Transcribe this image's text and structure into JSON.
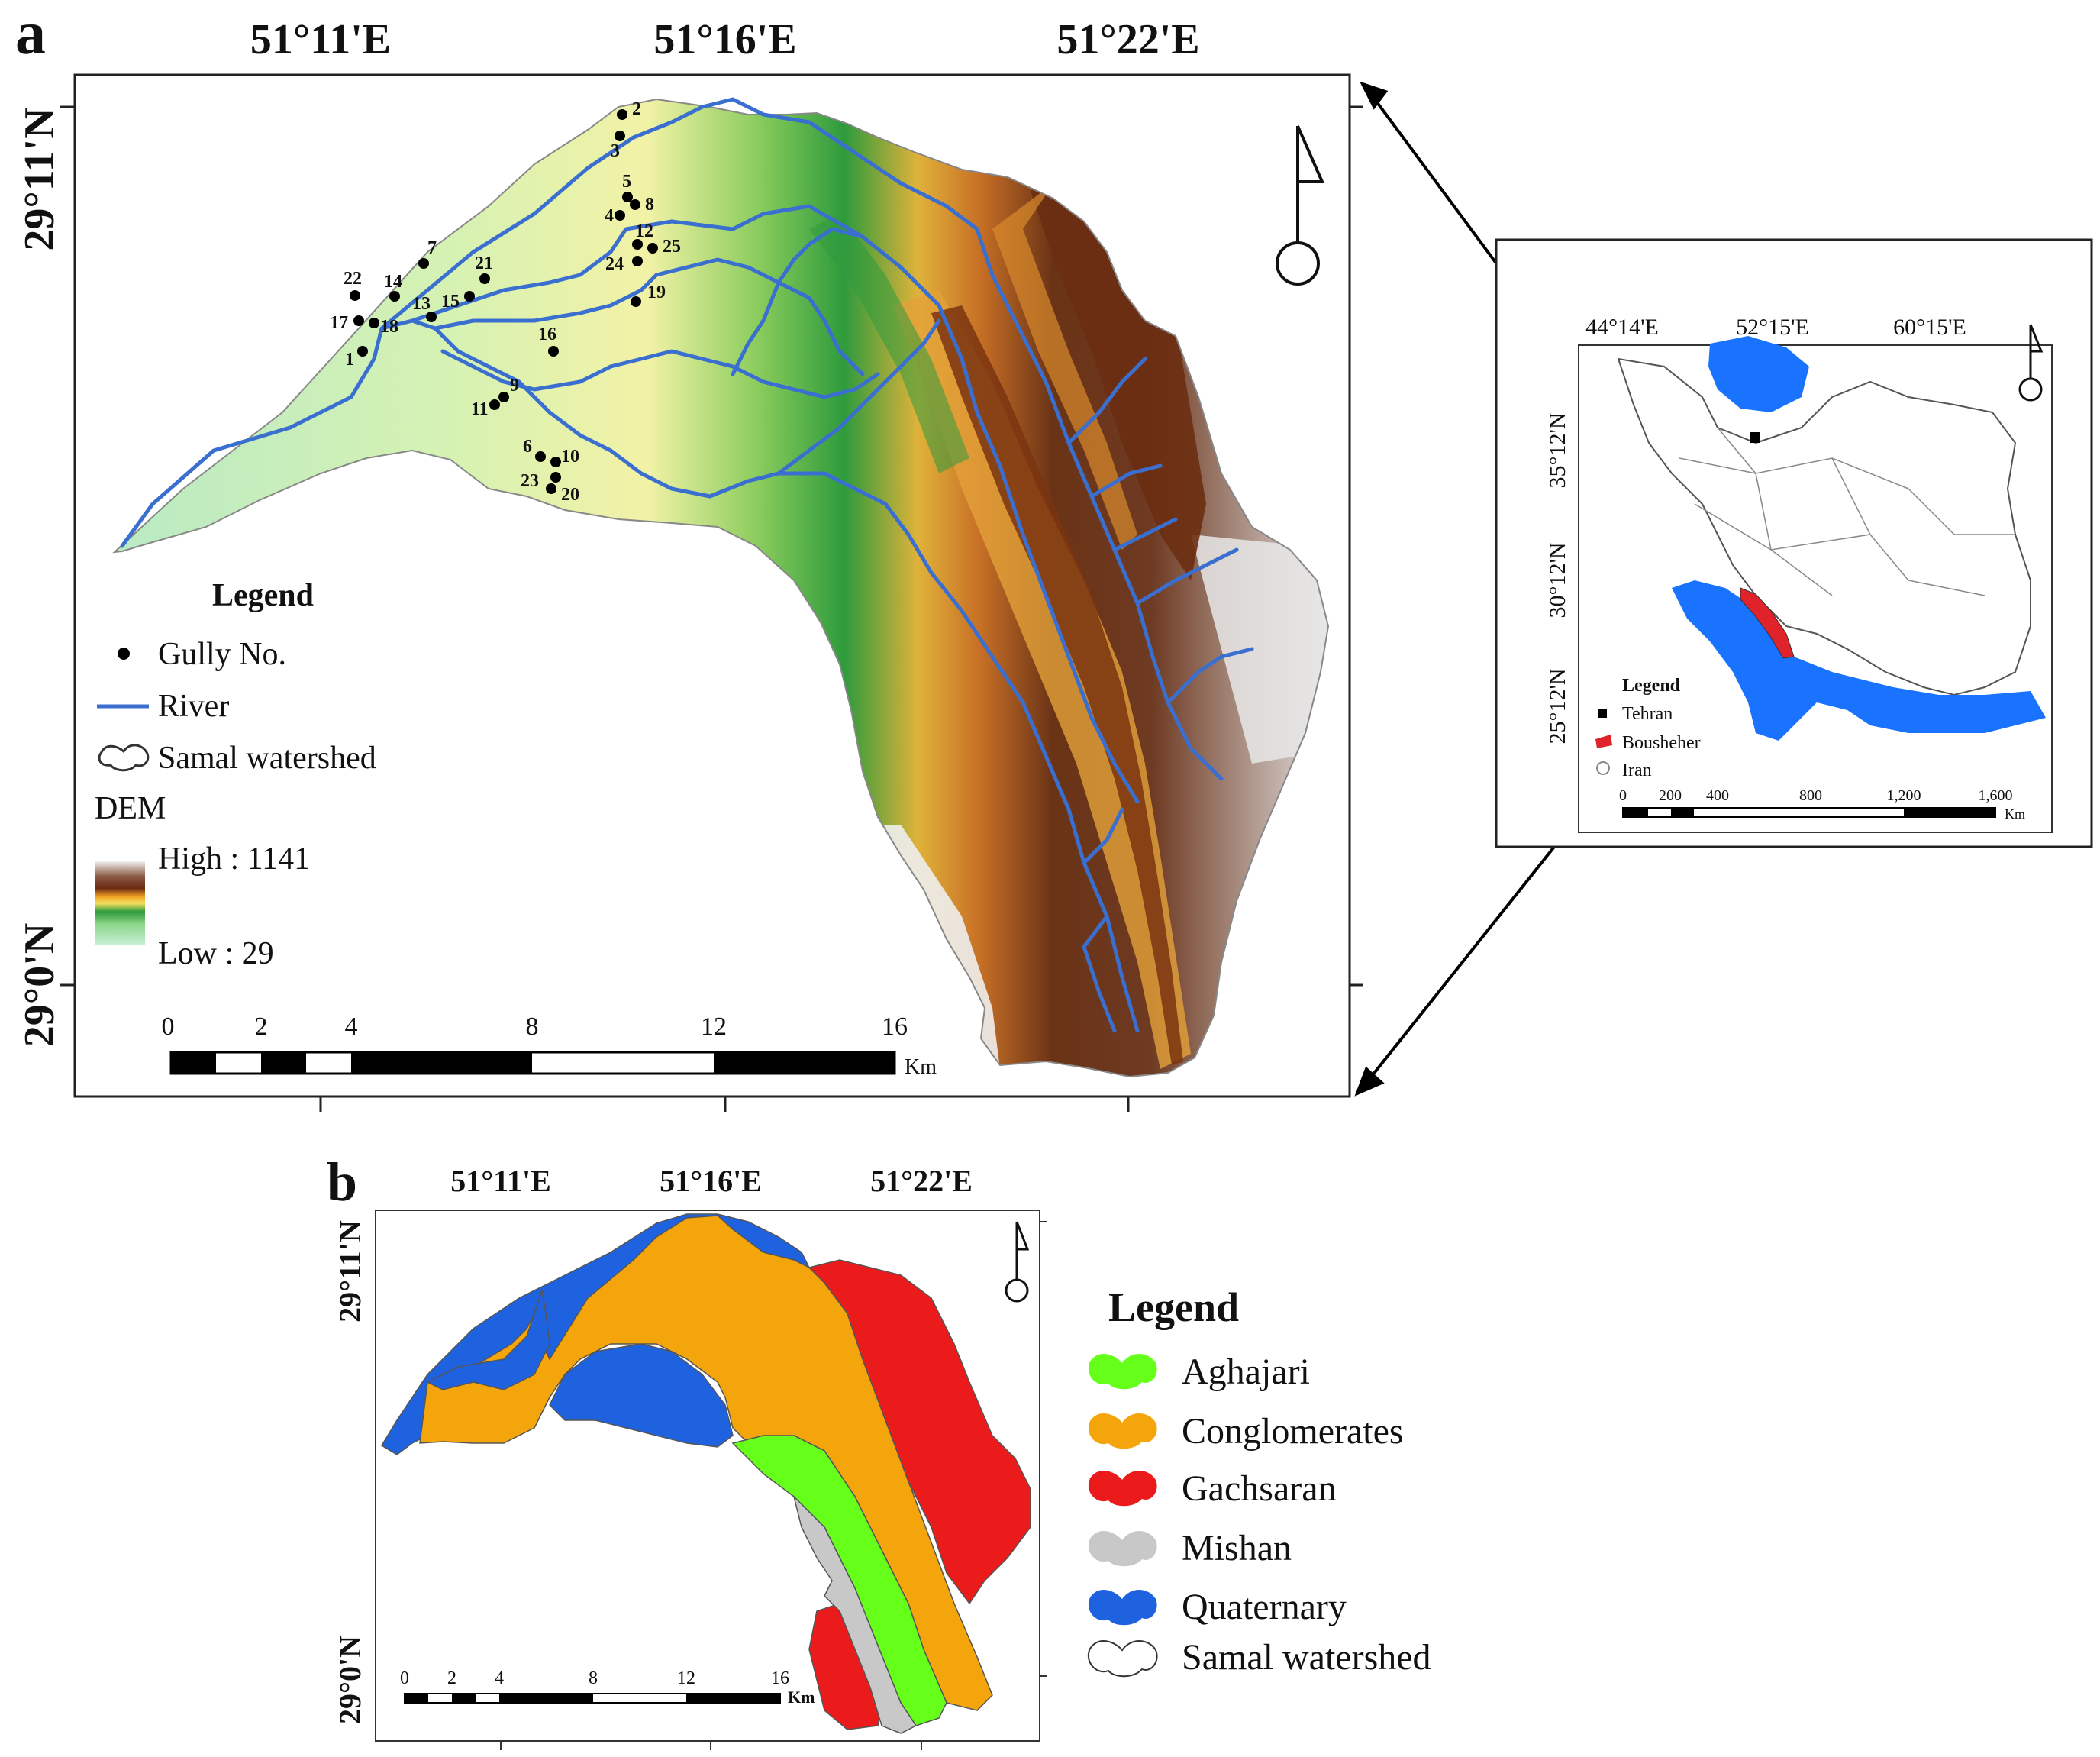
{
  "panel_a": {
    "label": "a",
    "lon_labels": [
      "51°11'E",
      "51°16'E",
      "51°22'E"
    ],
    "lat_labels": [
      "29°11'N",
      "29°0'N"
    ],
    "legend": {
      "title": "Legend",
      "gully": "Gully No.",
      "river": "River",
      "watershed": "Samal watershed",
      "dem_title": "DEM",
      "dem_high": "High : 1141",
      "dem_low": "Low : 29"
    },
    "scale": {
      "ticks": [
        "0",
        "2",
        "4",
        "8",
        "12",
        "16"
      ],
      "unit": "Km"
    },
    "gullies": [
      "1",
      "2",
      "3",
      "4",
      "5",
      "6",
      "7",
      "8",
      "9",
      "10",
      "11",
      "12",
      "13",
      "14",
      "15",
      "16",
      "17",
      "18",
      "19",
      "20",
      "21",
      "22",
      "23",
      "24",
      "25"
    ]
  },
  "inset": {
    "lon_labels": [
      "44°14'E",
      "52°15'E",
      "60°15'E"
    ],
    "lat_labels": [
      "35°12'N",
      "30°12'N",
      "25°12'N"
    ],
    "legend": {
      "title": "Legend",
      "tehran": "Tehran",
      "bousheher": "Bousheher",
      "iran": "Iran"
    },
    "scale": {
      "ticks": [
        "0",
        "200",
        "400",
        "800",
        "1,200",
        "1,600"
      ],
      "unit": "Km"
    }
  },
  "panel_b": {
    "label": "b",
    "lon_labels": [
      "51°11'E",
      "51°16'E",
      "51°22'E"
    ],
    "lat_labels": [
      "29°11'N",
      "29°0'N"
    ],
    "legend": {
      "title": "Legend",
      "items": [
        "Aghajari",
        "Conglomerates",
        "Gachsaran",
        "Mishan",
        "Quaternary",
        "Samal watershed"
      ]
    },
    "scale": {
      "ticks": [
        "0",
        "2",
        "4",
        "8",
        "12",
        "16"
      ],
      "unit": "Km"
    }
  },
  "colors": {
    "river": "#3a6fd0",
    "aghajari": "#66ff1a",
    "conglomerates": "#f5a50c",
    "gachsaran": "#ec1b1b",
    "mishan": "#c8c8c8",
    "quaternary": "#1f62e0",
    "sea": "#1a73ff",
    "bousheher": "#e0222a"
  }
}
